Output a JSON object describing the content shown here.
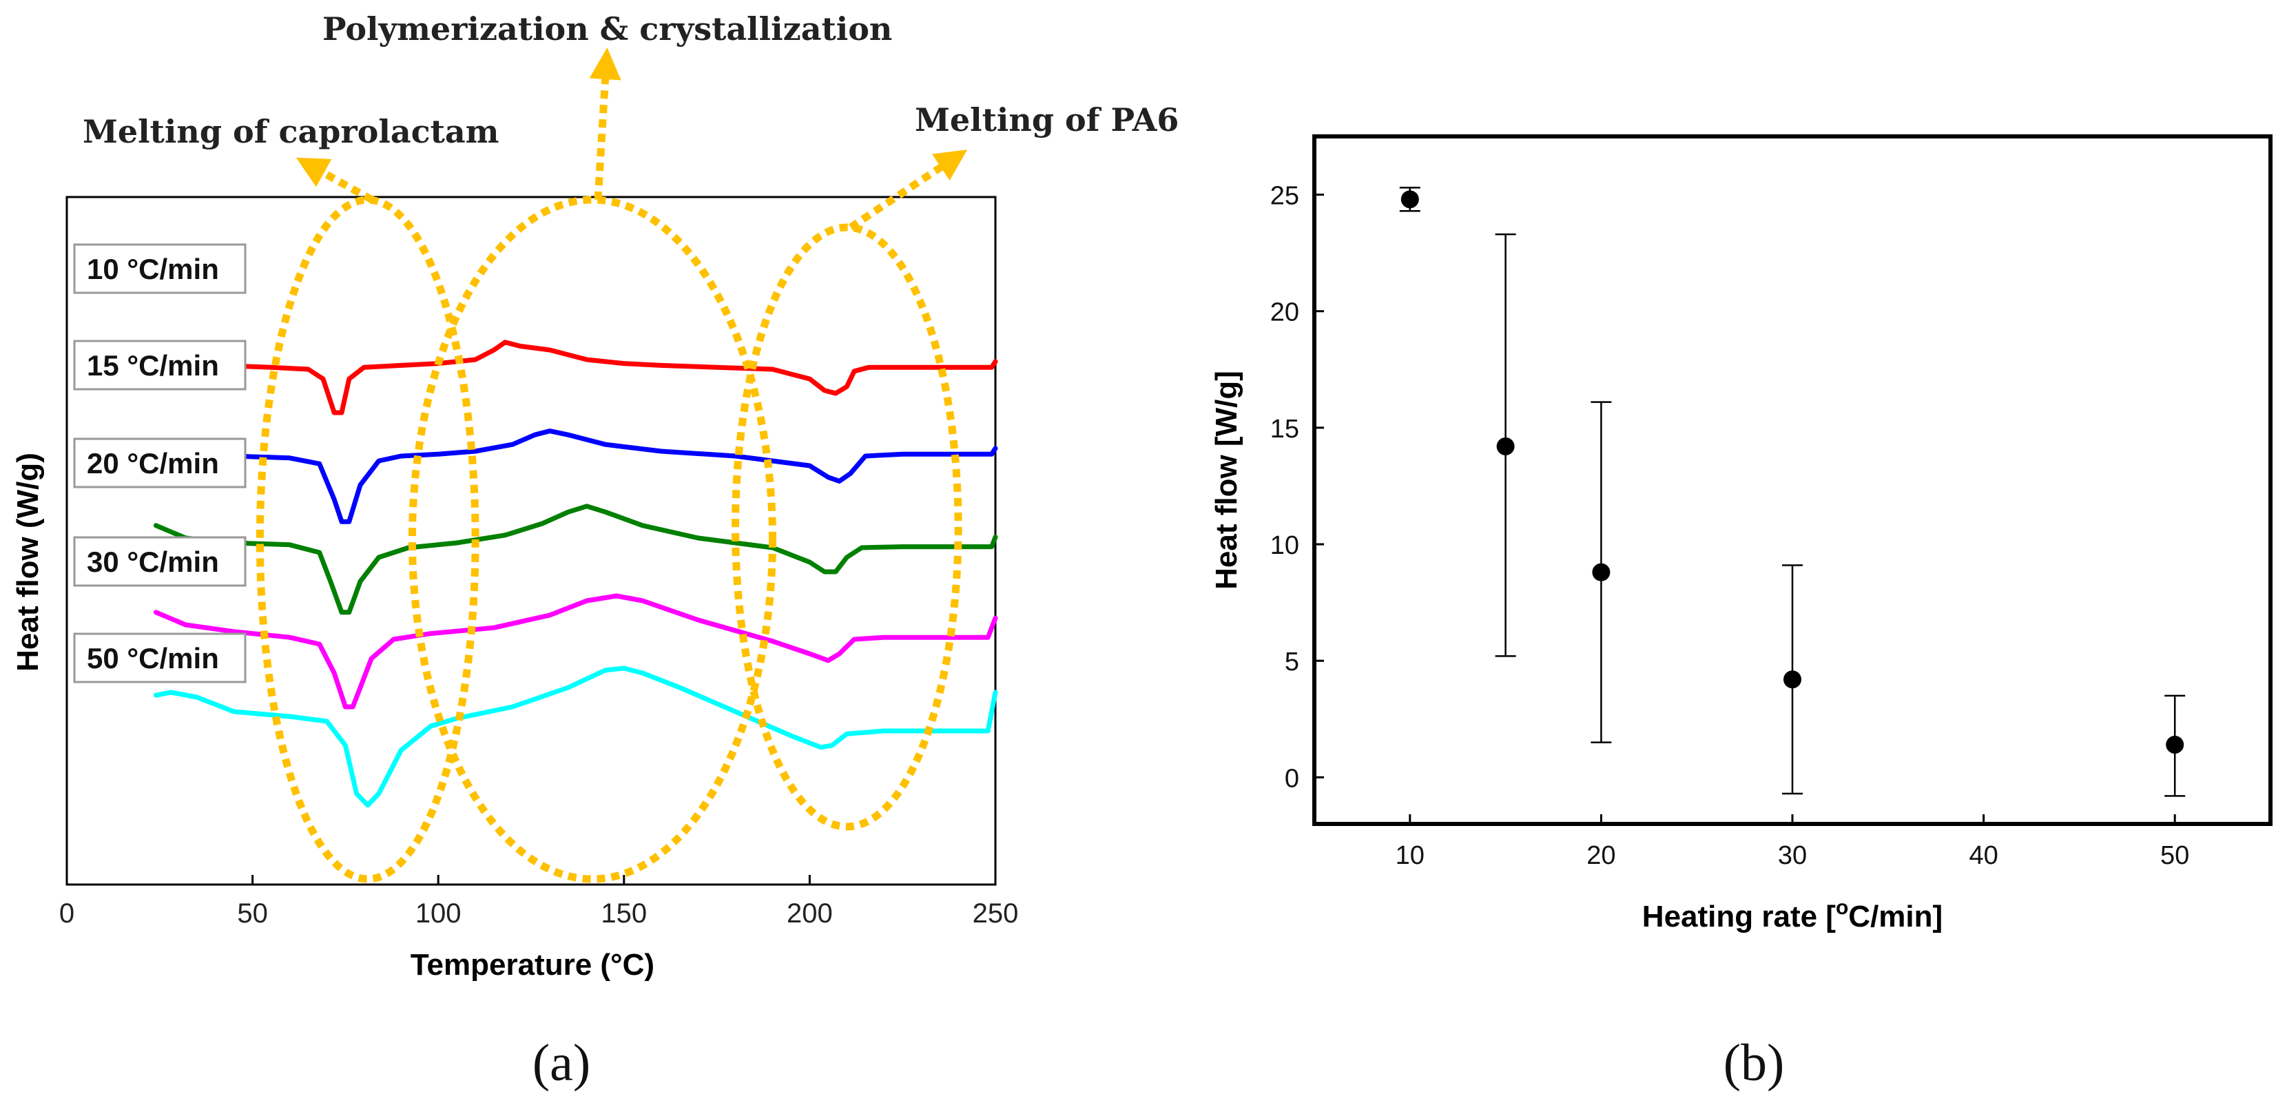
{
  "colors": {
    "ellipse": "#FFC000",
    "axis": "#000000"
  },
  "chart_data": [
    {
      "type": "line",
      "panel": "a",
      "panel_label": "(a)",
      "title": "",
      "xlabel": "Temperature (°C)",
      "ylabel": "Heat flow (W/g)",
      "xlim": [
        0,
        250
      ],
      "x_ticks": [
        "0",
        "50",
        "100",
        "150",
        "200",
        "250"
      ],
      "y_ticks": [],
      "grid": false,
      "annotations": [
        {
          "id": "caprolactam",
          "text": "Melting of caprolactam",
          "x_range": [
            52,
            110
          ]
        },
        {
          "id": "polymerization",
          "text": "Polymerization & crystallization",
          "x_range": [
            93,
            190
          ]
        },
        {
          "id": "pa6",
          "text": "Melting of PA6",
          "x_range": [
            180,
            240
          ]
        }
      ],
      "series": [
        {
          "name": "10 °C/min",
          "color": "#ff0000",
          "x": [
            24,
            30,
            40,
            55,
            65,
            69,
            72,
            74,
            76,
            80,
            90,
            100,
            110,
            115,
            118,
            122,
            130,
            140,
            150,
            160,
            175,
            190,
            200,
            204,
            207,
            210,
            212,
            216,
            225,
            235,
            249,
            250
          ],
          "y": [
            3.52,
            3.45,
            3.44,
            3.42,
            3.4,
            3.3,
            2.95,
            2.95,
            3.3,
            3.42,
            3.44,
            3.46,
            3.5,
            3.6,
            3.68,
            3.64,
            3.6,
            3.5,
            3.46,
            3.44,
            3.42,
            3.4,
            3.3,
            3.18,
            3.15,
            3.22,
            3.38,
            3.42,
            3.42,
            3.42,
            3.42,
            3.48
          ]
        },
        {
          "name": "15 °C/min",
          "color": "#0000ff",
          "x": [
            24,
            30,
            45,
            60,
            68,
            72,
            74,
            76,
            79,
            84,
            90,
            100,
            110,
            120,
            126,
            130,
            135,
            145,
            160,
            180,
            200,
            205,
            208,
            211,
            215,
            225,
            240,
            249,
            250
          ],
          "y": [
            2.65,
            2.55,
            2.5,
            2.48,
            2.42,
            2.05,
            1.82,
            1.82,
            2.2,
            2.45,
            2.5,
            2.52,
            2.55,
            2.62,
            2.72,
            2.76,
            2.72,
            2.62,
            2.55,
            2.5,
            2.4,
            2.28,
            2.24,
            2.32,
            2.5,
            2.52,
            2.52,
            2.52,
            2.58
          ]
        },
        {
          "name": "20 °C/min",
          "color": "#008000",
          "x": [
            24,
            32,
            45,
            60,
            68,
            71,
            74,
            76,
            79,
            84,
            92,
            105,
            118,
            128,
            135,
            140,
            145,
            155,
            170,
            190,
            200,
            204,
            207,
            210,
            214,
            225,
            240,
            249,
            250
          ],
          "y": [
            1.78,
            1.65,
            1.6,
            1.58,
            1.5,
            1.2,
            0.88,
            0.88,
            1.2,
            1.45,
            1.55,
            1.6,
            1.68,
            1.8,
            1.92,
            1.98,
            1.92,
            1.78,
            1.65,
            1.55,
            1.4,
            1.3,
            1.3,
            1.45,
            1.55,
            1.56,
            1.56,
            1.56,
            1.66
          ]
        },
        {
          "name": "30 °C/min",
          "color": "#ff00ff",
          "x": [
            24,
            32,
            45,
            60,
            68,
            72,
            75,
            77,
            79,
            82,
            88,
            98,
            115,
            130,
            140,
            148,
            155,
            170,
            190,
            200,
            205,
            208,
            212,
            220,
            235,
            248,
            250
          ],
          "y": [
            0.88,
            0.75,
            0.68,
            0.62,
            0.55,
            0.25,
            -0.1,
            -0.1,
            0.1,
            0.4,
            0.6,
            0.66,
            0.72,
            0.85,
            1.0,
            1.05,
            1.0,
            0.8,
            0.58,
            0.45,
            0.38,
            0.45,
            0.6,
            0.62,
            0.62,
            0.62,
            0.82
          ]
        },
        {
          "name": "50 °C/min",
          "color": "#00ffff",
          "x": [
            24,
            28,
            35,
            45,
            60,
            70,
            75,
            78,
            81,
            84,
            90,
            98,
            105,
            120,
            135,
            145,
            150,
            155,
            165,
            180,
            195,
            203,
            206,
            210,
            220,
            235,
            248,
            249,
            250
          ],
          "y": [
            0.02,
            0.05,
            0.0,
            -0.15,
            -0.2,
            -0.25,
            -0.5,
            -1.0,
            -1.12,
            -1.0,
            -0.55,
            -0.3,
            -0.22,
            -0.1,
            0.1,
            0.28,
            0.3,
            0.25,
            0.1,
            -0.15,
            -0.4,
            -0.52,
            -0.5,
            -0.38,
            -0.35,
            -0.35,
            -0.35,
            -0.15,
            0.05
          ]
        }
      ]
    },
    {
      "type": "scatter",
      "panel": "b",
      "panel_label": "(b)",
      "title": "",
      "xlabel": "Heating rate [°C/min]",
      "xlabel_parts": [
        "Heating rate [",
        "o",
        "C/min]"
      ],
      "ylabel": "Heat flow [W/g]",
      "xlim": [
        5,
        55
      ],
      "ylim": [
        -2,
        27.5
      ],
      "x_ticks": [
        10,
        20,
        30,
        40,
        50
      ],
      "y_ticks": [
        0,
        5,
        10,
        15,
        20,
        25
      ],
      "grid": false,
      "points": [
        {
          "x": 10,
          "y": 24.8,
          "err_low": 24.3,
          "err_high": 25.3
        },
        {
          "x": 15,
          "y": 14.2,
          "err_low": 5.2,
          "err_high": 23.3
        },
        {
          "x": 20,
          "y": 8.8,
          "err_low": 1.5,
          "err_high": 16.1
        },
        {
          "x": 30,
          "y": 4.2,
          "err_low": -0.7,
          "err_high": 9.1
        },
        {
          "x": 50,
          "y": 1.4,
          "err_low": -0.8,
          "err_high": 3.5
        }
      ]
    }
  ]
}
